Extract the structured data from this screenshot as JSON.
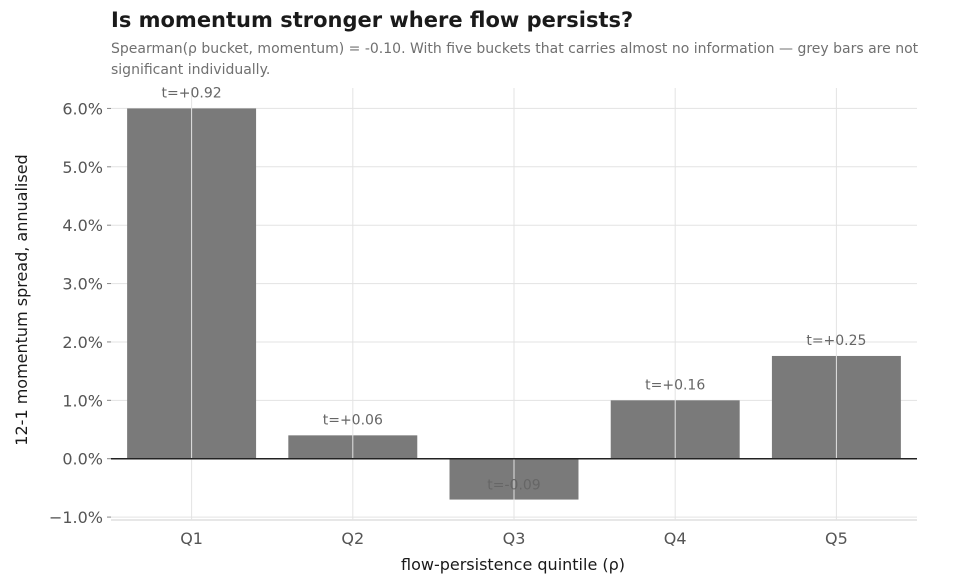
{
  "chart_data": {
    "type": "bar",
    "title": "Is momentum stronger where flow persists?",
    "subtitle": "Spearman(ρ bucket, momentum) = -0.10. With five buckets that carries almost no information — grey bars are not significant individually.",
    "xlabel": "flow-persistence quintile (ρ)",
    "ylabel": "12-1 momentum spread, annualised",
    "categories": [
      "Q1",
      "Q2",
      "Q3",
      "Q4",
      "Q5"
    ],
    "values": [
      6.0,
      0.4,
      -0.7,
      1.0,
      1.76
    ],
    "bar_labels": [
      "t=+0.92",
      "t=+0.06",
      "t=-0.09",
      "t=+0.16",
      "t=+0.25"
    ],
    "ylim": [
      -1.05,
      6.35
    ],
    "yticks": [
      -1.0,
      0.0,
      1.0,
      2.0,
      3.0,
      4.0,
      5.0,
      6.0
    ],
    "ytick_labels": [
      "−1.0%",
      "0.0%",
      "1.0%",
      "2.0%",
      "3.0%",
      "4.0%",
      "5.0%",
      "6.0%"
    ],
    "grid": true,
    "colors": {
      "bar": "#7a7a7a",
      "grid": "#e3e3e3",
      "zero_line": "#222222",
      "text": "#555555",
      "label": "#666666"
    }
  }
}
